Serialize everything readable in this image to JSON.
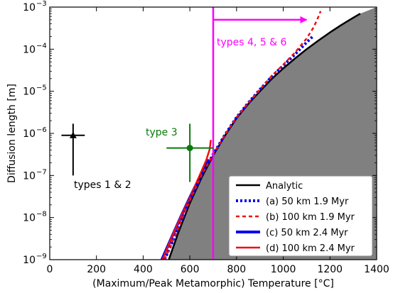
{
  "chart_data": {
    "type": "line",
    "title": "",
    "xlabel": "(Maximum/Peak Metamorphic) Temperature [°C]",
    "ylabel": "Diffusion length [m]",
    "xlim": [
      0,
      1400
    ],
    "ylim": [
      1e-09,
      0.001
    ],
    "yscale": "log",
    "x_ticks": [
      0,
      200,
      400,
      600,
      800,
      1000,
      1200,
      1400
    ],
    "x_tick_labels": [
      "0",
      "200",
      "400",
      "600",
      "800",
      "1000",
      "1200",
      "1400"
    ],
    "y_ticks": [
      1e-09,
      1e-08,
      1e-07,
      1e-06,
      1e-05,
      0.0001,
      0.001
    ],
    "y_tick_bases": [
      "10",
      "10",
      "10",
      "10",
      "10",
      "10",
      "10"
    ],
    "y_tick_exps": [
      "−9",
      "−8",
      "−7",
      "−6",
      "−5",
      "−4",
      "−3"
    ],
    "legend_position": "bottom-right",
    "colors": {
      "analytic": "#000000",
      "blue": "#0000ee",
      "red": "#ee1111",
      "magenta": "#ff00ff",
      "green": "#0a7a0a",
      "fill": "#808080"
    },
    "series": [
      {
        "name": "Analytic",
        "style": "solid",
        "color": "#000000",
        "x": [
          500,
          550,
          600,
          650,
          700,
          750,
          800,
          850,
          900,
          950,
          1000,
          1050,
          1100,
          1150,
          1200,
          1250,
          1300,
          1330
        ],
        "y": [
          7e-10,
          4.3e-09,
          2.2e-08,
          8.8e-08,
          3e-07,
          8.8e-07,
          2.3e-06,
          5e-06,
          1e-05,
          1.95e-05,
          3.5e-05,
          6e-05,
          0.0001,
          0.00016,
          0.00025,
          0.00038,
          0.00056,
          0.0007
        ]
      },
      {
        "name": "(a) 50 km 1.9 Myr",
        "style": "dotted",
        "color": "#0000ee",
        "x": [
          492,
          550,
          600,
          650,
          700,
          750,
          800,
          850,
          900,
          950,
          1000,
          1050,
          1100,
          1130
        ],
        "y": [
          1e-09,
          5.5e-09,
          2.6e-08,
          1e-07,
          3.2e-07,
          9.2e-07,
          2.4e-06,
          5.3e-06,
          1.1e-05,
          2.2e-05,
          4.1e-05,
          7.5e-05,
          0.000145,
          0.00021
        ]
      },
      {
        "name": "(b) 100 km 1.9 Myr",
        "style": "dashed",
        "color": "#ee1111",
        "x": [
          492,
          550,
          600,
          650,
          700,
          750,
          800,
          850,
          900,
          950,
          1000,
          1050,
          1100,
          1130,
          1150,
          1160
        ],
        "y": [
          1e-09,
          5.5e-09,
          2.6e-08,
          1e-07,
          3.2e-07,
          9.2e-07,
          2.4e-06,
          5.3e-06,
          1.1e-05,
          2.3e-05,
          4.3e-05,
          8.3e-05,
          0.00018,
          0.00033,
          0.00058,
          0.0008
        ]
      },
      {
        "name": "(c) 50 km 2.4 Myr",
        "style": "solid",
        "color": "#0000ee",
        "x": [
          480,
          520,
          560,
          600,
          640,
          670,
          682
        ],
        "y": [
          1e-09,
          3.2e-09,
          1e-08,
          3e-08,
          8.5e-08,
          1.8e-07,
          2.4e-07
        ]
      },
      {
        "name": "(d) 100 km 2.4 Myr",
        "style": "solid",
        "color": "#ee1111",
        "x": [
          483,
          520,
          560,
          600,
          640,
          670,
          685,
          690
        ],
        "y": [
          1e-09,
          3.2e-09,
          1e-08,
          3e-08,
          9.5e-08,
          2.3e-07,
          4.2e-07,
          7e-07
        ]
      }
    ],
    "annotations": [
      {
        "id": "types123",
        "label": "types 1 & 2",
        "color": "#000000"
      },
      {
        "id": "type3",
        "label": "type 3",
        "color": "#0a7a0a"
      },
      {
        "id": "types456",
        "label": "types 4, 5 & 6",
        "color": "#ff00ff"
      }
    ],
    "points": [
      {
        "label": "types 1 & 2",
        "x": 100,
        "y": 9e-07,
        "x_err": [
          50,
          150
        ],
        "y_err": [
          1e-07,
          1.7e-06
        ],
        "marker": "triangle",
        "color": "#000000"
      },
      {
        "label": "type 3",
        "x": 600,
        "y": 4.5e-07,
        "x_err": [
          500,
          700
        ],
        "y_err": [
          7e-08,
          1.7e-06
        ],
        "marker": "circle",
        "color": "#0a7a0a"
      }
    ],
    "vline": {
      "x": 700,
      "color": "#ff00ff"
    },
    "arrow": {
      "x_from": 700,
      "x_to": 1100,
      "y": 0.0005,
      "color": "#ff00ff"
    }
  }
}
